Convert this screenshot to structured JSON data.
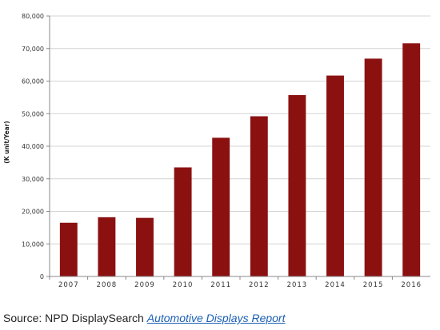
{
  "chart_data": {
    "type": "bar",
    "title": "",
    "xlabel": "",
    "ylabel": "(K unit/Year)",
    "ylim": [
      0,
      80000
    ],
    "yticks": [
      "0",
      "10,000",
      "20,000",
      "30,000",
      "40,000",
      "50,000",
      "60,000",
      "70,000",
      "80,000"
    ],
    "categories": [
      "2007",
      "2008",
      "2009",
      "2010",
      "2011",
      "2012",
      "2013",
      "2014",
      "2015",
      "2016"
    ],
    "values": [
      16500,
      18200,
      18000,
      33500,
      42600,
      49200,
      55700,
      61700,
      66900,
      71600
    ],
    "grid": true,
    "legend": "none",
    "bar_color": "#8b1111"
  },
  "source": {
    "prefix": "Source: NPD DisplaySearch ",
    "link_text": "Automotive Displays Report"
  }
}
